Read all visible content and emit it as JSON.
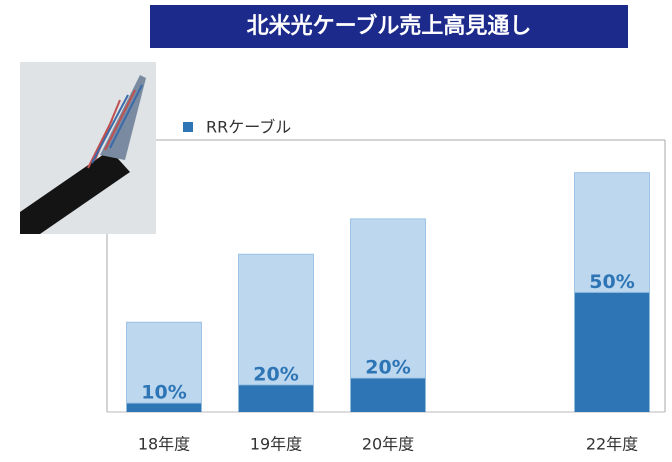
{
  "chart_data": {
    "type": "bar",
    "title": "北米光ケーブル売上高見通し",
    "categories": [
      "18年度",
      "19年度",
      "20年度",
      null,
      "22年度"
    ],
    "stacked": true,
    "ylim": [
      0,
      100
    ],
    "legend": "top-left",
    "series": [
      {
        "name": "RRケーブル",
        "color": "#2e75b6",
        "values": [
          3.3,
          10,
          12.5,
          null,
          44
        ],
        "share": [
          10,
          20,
          20,
          null,
          50
        ],
        "share_labels": [
          "10%",
          "20%",
          "20%",
          null,
          "50%"
        ]
      },
      {
        "color": "#bdd7ee",
        "values": [
          29.7,
          48,
          58.5,
          null,
          44
        ]
      }
    ]
  }
}
